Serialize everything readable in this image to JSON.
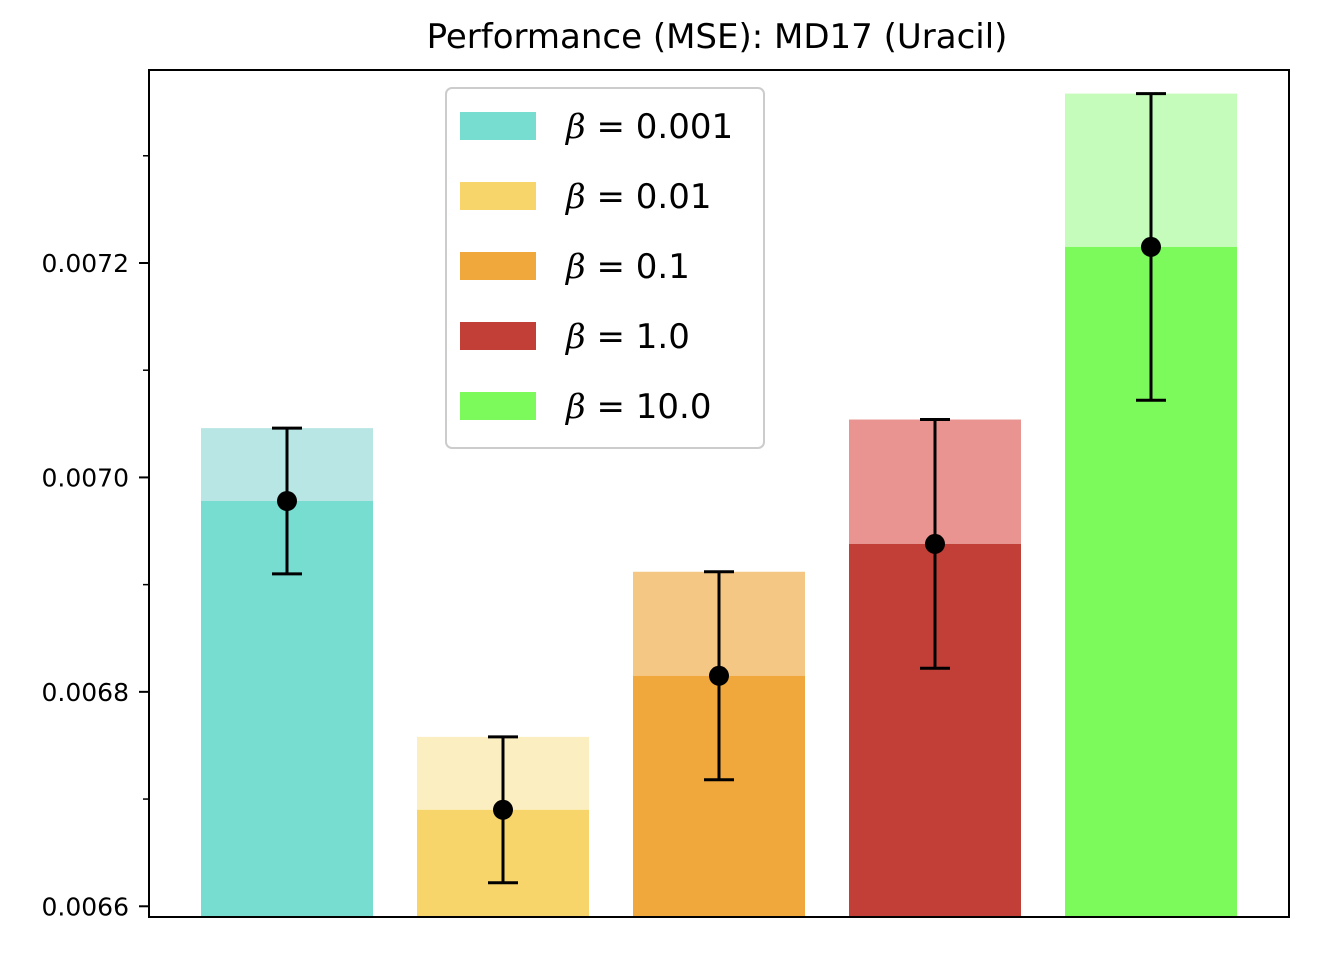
{
  "chart_data": {
    "type": "bar",
    "title": "Performance (MSE): MD17 (Uracil)",
    "xlabel": "",
    "ylabel": "",
    "ylim": [
      0.00659,
      0.00738
    ],
    "yticks_major": [
      0.0066,
      0.0068,
      0.007,
      0.0072
    ],
    "ytick_labels": [
      "0.0066",
      "0.0068",
      "0.0070",
      "0.0072"
    ],
    "yticks_minor": [
      0.0067,
      0.0069,
      0.0071,
      0.0073
    ],
    "legend_placement": "upper-center",
    "legend_symbol": "β",
    "legend_equals": " = ",
    "series": [
      {
        "name": "β = 0.001",
        "beta": "0.001",
        "mean": 0.006978,
        "err": 6.8e-05,
        "color": "#78ddd1",
        "light": "#b8e6e4"
      },
      {
        "name": "β = 0.01",
        "beta": "0.01",
        "mean": 0.00669,
        "err": 6.8e-05,
        "color": "#f7d56a",
        "light": "#fbefc2"
      },
      {
        "name": "β = 0.1",
        "beta": "0.1",
        "mean": 0.006815,
        "err": 9.7e-05,
        "color": "#f0a73c",
        "light": "#f5c785"
      },
      {
        "name": "β = 1.0",
        "beta": "1.0",
        "mean": 0.006938,
        "err": 0.000116,
        "color": "#c23f38",
        "light": "#e99490"
      },
      {
        "name": "β = 10.0",
        "beta": "10.0",
        "mean": 0.007215,
        "err": 0.000143,
        "color": "#7cf95b",
        "light": "#c6fcbb"
      }
    ]
  }
}
